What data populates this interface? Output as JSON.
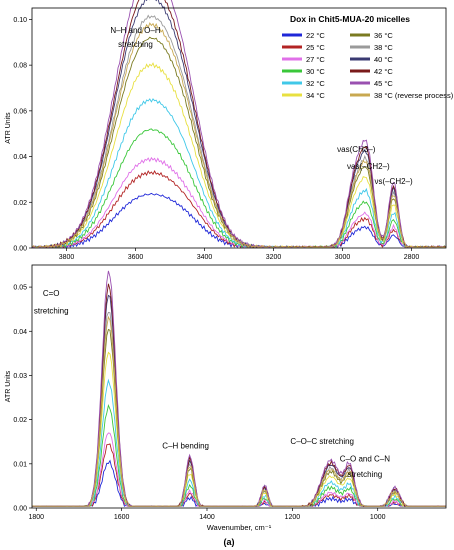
{
  "figure_label": "(a)",
  "chart_data": [
    {
      "type": "line",
      "title": "Dox in Chit5-MUA-20 micelles",
      "xlabel": "",
      "ylabel": "ATR Units",
      "xlim": [
        3900,
        2700
      ],
      "ylim": [
        0,
        0.105
      ],
      "x_reversed": true,
      "grid": false,
      "legend_position": "top-right",
      "xticks": [
        3800,
        3600,
        3400,
        3200,
        3000,
        2800
      ],
      "yticks": [
        0,
        0.02,
        0.04,
        0.06,
        0.08,
        0.1
      ],
      "ytick_labels": [
        "0.00",
        "0.02",
        "0.04",
        "0.06",
        "0.08",
        "0.10"
      ],
      "annotations": [
        {
          "text": "N–H and O–H",
          "x": 3600,
          "y": 0.094
        },
        {
          "text": "stretching",
          "x": 3600,
          "y": 0.088
        },
        {
          "text": "νas(CH3–)",
          "x": 2960,
          "y": 0.042
        },
        {
          "text": "νas(–CH2–)",
          "x": 2925,
          "y": 0.0345
        },
        {
          "text": "νs(–CH2–)",
          "x": 2852,
          "y": 0.028
        }
      ],
      "series": [
        {
          "name": "22 °C",
          "color": "#1f27d8",
          "scale": 0.2
        },
        {
          "name": "25 °C",
          "color": "#b32424",
          "scale": 0.28
        },
        {
          "name": "27 °C",
          "color": "#e070e8",
          "scale": 0.33
        },
        {
          "name": "30 °C",
          "color": "#3ac73a",
          "scale": 0.44
        },
        {
          "name": "32 °C",
          "color": "#40c8e8",
          "scale": 0.55
        },
        {
          "name": "34 °C",
          "color": "#e8e040",
          "scale": 0.68
        },
        {
          "name": "36 °C",
          "color": "#7a7a20",
          "scale": 0.78
        },
        {
          "name": "38 °C",
          "color": "#9a9a9a",
          "scale": 0.86
        },
        {
          "name": "40 °C",
          "color": "#3a3a72",
          "scale": 0.93
        },
        {
          "name": "42 °C",
          "color": "#7a1a1a",
          "scale": 0.97
        },
        {
          "name": "45 °C",
          "color": "#9a50b0",
          "scale": 1.03
        },
        {
          "name": "38 °C (reverse process)",
          "color": "#c8a850",
          "scale": 0.83
        }
      ],
      "peaks": [
        {
          "x": 3590,
          "height": 0.098,
          "width": 80
        },
        {
          "x": 3470,
          "height": 0.06,
          "width": 70
        },
        {
          "x": 2960,
          "height": 0.033,
          "width": 25
        },
        {
          "x": 2925,
          "height": 0.03,
          "width": 18
        },
        {
          "x": 2852,
          "height": 0.028,
          "width": 14
        }
      ]
    },
    {
      "type": "line",
      "title": "",
      "xlabel": "Wavenumber, cm⁻¹",
      "ylabel": "ATR Units",
      "xlim": [
        1810,
        840
      ],
      "ylim": [
        0,
        0.055
      ],
      "x_reversed": true,
      "grid": false,
      "xticks": [
        1800,
        1600,
        1400,
        1200,
        1000
      ],
      "yticks": [
        0,
        0.01,
        0.02,
        0.03,
        0.04,
        0.05
      ],
      "ytick_labels": [
        "0.00",
        "0.01",
        "0.02",
        "0.03",
        "0.04",
        "0.05"
      ],
      "annotations": [
        {
          "text": "C=O",
          "x": 1765,
          "y": 0.048
        },
        {
          "text": "stretching",
          "x": 1765,
          "y": 0.044
        },
        {
          "text": "C–H bending",
          "x": 1450,
          "y": 0.0135
        },
        {
          "text": "C–O–C stretching",
          "x": 1130,
          "y": 0.0145
        },
        {
          "text": "C–O and C–N",
          "x": 1030,
          "y": 0.0105
        },
        {
          "text": "stretching",
          "x": 1030,
          "y": 0.007
        }
      ],
      "peaks": [
        {
          "x": 1630,
          "height": 0.052,
          "width": 16
        },
        {
          "x": 1440,
          "height": 0.0115,
          "width": 10
        },
        {
          "x": 1265,
          "height": 0.005,
          "width": 8
        },
        {
          "x": 1110,
          "height": 0.0105,
          "width": 22
        },
        {
          "x": 1065,
          "height": 0.0085,
          "width": 12
        },
        {
          "x": 960,
          "height": 0.0045,
          "width": 12
        }
      ]
    }
  ]
}
